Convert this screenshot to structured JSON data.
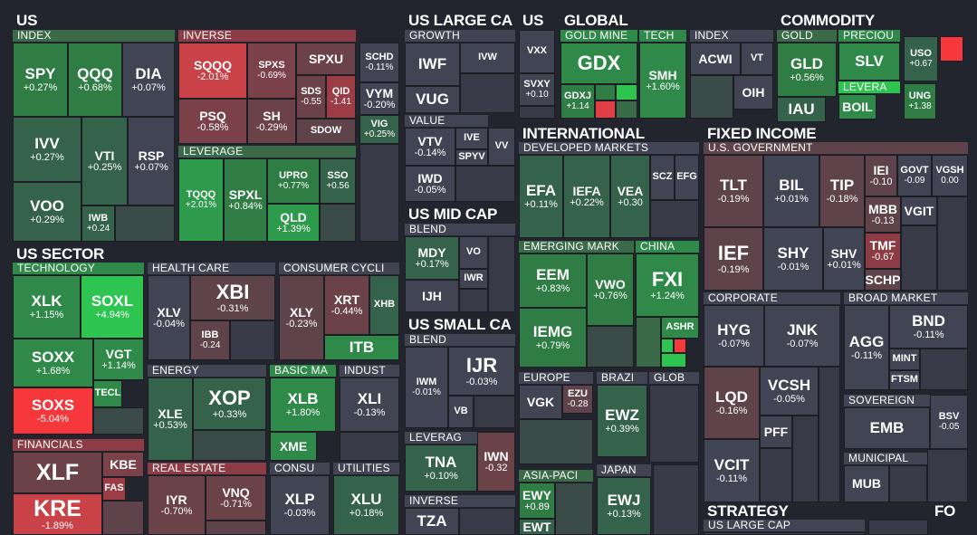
{
  "colors": {
    "bg": "#22252d",
    "neutral": "#414553",
    "neutral_dark": "#383b47",
    "green": "#2f8a4a",
    "green_bright": "#2dc550",
    "red": "#8b3d44",
    "red_bright": "#f6383c",
    "group_green": "#3a6a48",
    "group_red": "#8b3c44",
    "group_neutral": "#414553"
  },
  "sections": {
    "us": "US",
    "us_large_cap": "US LARGE CA",
    "us_small": "US",
    "global": "GLOBAL",
    "commodity": "COMMODITY",
    "us_sector": "US SECTOR",
    "us_mid_cap": "US MID CAP",
    "us_small_cap": "US SMALL CA",
    "international": "INTERNATIONAL",
    "fixed_income": "FIXED INCOME",
    "strategy": "STRATEGY",
    "fo": "FO"
  },
  "groups": {
    "index": "INDEX",
    "inverse": "INVERSE",
    "leverage": "LEVERAGE",
    "growth": "GROWTH",
    "value": "VALUE",
    "blend_mid": "BLEND",
    "blend_small": "BLEND",
    "leverag_small": "LEVERAG",
    "inverse_small": "INVERSE",
    "gold_mine": "GOLD MINE",
    "tech": "TECH",
    "index_global": "INDEX",
    "gold": "GOLD",
    "precious": "PRECIOU",
    "levera": "LEVERA",
    "technology": "TECHNOLOGY",
    "health_care": "HEALTH CARE",
    "consumer_cycl": "CONSUMER CYCLI",
    "energy": "ENERGY",
    "basic_ma": "BASIC MA",
    "indust": "INDUST",
    "financials": "FINANCIALS",
    "real_estate": "REAL ESTATE",
    "consu": "CONSU",
    "utilities": "UTILITIES",
    "developed": "DEVELOPED MARKETS",
    "emerging": "EMERGING MARK",
    "china": "CHINA",
    "europe": "EUROPE",
    "brazi": "BRAZI",
    "glob": "GLOB",
    "asia_paci": "ASIA-PACI",
    "japan": "JAPAN",
    "us_government": "U.S. GOVERNMENT",
    "corporate": "CORPORATE",
    "broad_market": "BROAD MARKET",
    "sovereign": "SOVEREIGN",
    "municipal": "MUNICIPAL",
    "us_large_cap_strat": "US LARGE CAP"
  },
  "tiles": {
    "spy": {
      "t": "SPY",
      "c": "+0.27%"
    },
    "qqq": {
      "t": "QQQ",
      "c": "+0.68%"
    },
    "dia": {
      "t": "DIA",
      "c": "+0.07%"
    },
    "ivv": {
      "t": "IVV",
      "c": "+0.27%"
    },
    "vti": {
      "t": "VTI",
      "c": "+0.25%"
    },
    "rsp": {
      "t": "RSP",
      "c": "+0.07%"
    },
    "voo": {
      "t": "VOO",
      "c": "+0.29%"
    },
    "iwb": {
      "t": "IWB",
      "c": "+0.24"
    },
    "sqqq": {
      "t": "SQQQ",
      "c": "-2.01%"
    },
    "spxs": {
      "t": "SPXS",
      "c": "-0.69%"
    },
    "spxu": {
      "t": "SPXU",
      "c": ""
    },
    "psq": {
      "t": "PSQ",
      "c": "-0.58%"
    },
    "sh": {
      "t": "SH",
      "c": "-0.29%"
    },
    "sds": {
      "t": "SDS",
      "c": "-0.55"
    },
    "qid": {
      "t": "QID",
      "c": "-1.41"
    },
    "sdow": {
      "t": "SDOW",
      "c": ""
    },
    "tqqq": {
      "t": "TQQQ",
      "c": "+2.01%"
    },
    "spxl": {
      "t": "SPXL",
      "c": "+0.84%"
    },
    "upro": {
      "t": "UPRO",
      "c": "+0.77%"
    },
    "sso": {
      "t": "SSO",
      "c": "+0.56"
    },
    "qld": {
      "t": "QLD",
      "c": "+1.39%"
    },
    "schd": {
      "t": "SCHD",
      "c": "-0.11%"
    },
    "vym": {
      "t": "VYM",
      "c": "-0.20%"
    },
    "vig": {
      "t": "VIG",
      "c": "+0.25%"
    },
    "iwf": {
      "t": "IWF",
      "c": ""
    },
    "ivw": {
      "t": "IVW",
      "c": ""
    },
    "vug": {
      "t": "VUG",
      "c": ""
    },
    "vtv": {
      "t": "VTV",
      "c": "-0.14%"
    },
    "ive": {
      "t": "IVE",
      "c": ""
    },
    "spyv": {
      "t": "SPYV",
      "c": ""
    },
    "vv": {
      "t": "VV",
      "c": ""
    },
    "iwd": {
      "t": "IWD",
      "c": "-0.05%"
    },
    "mdy": {
      "t": "MDY",
      "c": "+0.17%"
    },
    "vo": {
      "t": "VO",
      "c": ""
    },
    "iwr": {
      "t": "IWR",
      "c": ""
    },
    "ijh": {
      "t": "IJH",
      "c": ""
    },
    "ijr": {
      "t": "IJR",
      "c": "-0.03%"
    },
    "iwm": {
      "t": "IWM",
      "c": "-0.01%"
    },
    "vb": {
      "t": "VB",
      "c": ""
    },
    "tna": {
      "t": "TNA",
      "c": "+0.10%"
    },
    "iwn": {
      "t": "IWN",
      "c": "-0.32"
    },
    "tza": {
      "t": "TZA",
      "c": ""
    },
    "vxx": {
      "t": "VXX",
      "c": ""
    },
    "svxy": {
      "t": "SVXY",
      "c": "+0.10"
    },
    "gdx": {
      "t": "GDX",
      "c": ""
    },
    "gdxj": {
      "t": "GDXJ",
      "c": "+1.14"
    },
    "smh": {
      "t": "SMH",
      "c": "+1.60%"
    },
    "acwi": {
      "t": "ACWI",
      "c": ""
    },
    "vt": {
      "t": "VT",
      "c": ""
    },
    "oih": {
      "t": "OIH",
      "c": ""
    },
    "gld": {
      "t": "GLD",
      "c": "+0.56%"
    },
    "iau": {
      "t": "IAU",
      "c": ""
    },
    "slv": {
      "t": "SLV",
      "c": ""
    },
    "boil": {
      "t": "BOIL",
      "c": ""
    },
    "uso": {
      "t": "USO",
      "c": "+0.67"
    },
    "ung": {
      "t": "UNG",
      "c": "+1.38"
    },
    "xlk": {
      "t": "XLK",
      "c": "+1.15%"
    },
    "soxl": {
      "t": "SOXL",
      "c": "+4.94%"
    },
    "soxx": {
      "t": "SOXX",
      "c": "+1.68%"
    },
    "vgt": {
      "t": "VGT",
      "c": "+1.14%"
    },
    "tecl": {
      "t": "TECL",
      "c": ""
    },
    "soxs": {
      "t": "SOXS",
      "c": "-5.04%"
    },
    "xlv": {
      "t": "XLV",
      "c": "-0.04%"
    },
    "xbi": {
      "t": "XBI",
      "c": "-0.31%"
    },
    "ibb": {
      "t": "IBB",
      "c": "-0.24"
    },
    "xly": {
      "t": "XLY",
      "c": "-0.23%"
    },
    "xrt": {
      "t": "XRT",
      "c": "-0.44%"
    },
    "xhb": {
      "t": "XHB",
      "c": ""
    },
    "itb": {
      "t": "ITB",
      "c": ""
    },
    "xle": {
      "t": "XLE",
      "c": "+0.53%"
    },
    "xop": {
      "t": "XOP",
      "c": "+0.33%"
    },
    "xlb": {
      "t": "XLB",
      "c": "+1.80%"
    },
    "xme": {
      "t": "XME",
      "c": ""
    },
    "xli": {
      "t": "XLI",
      "c": "-0.13%"
    },
    "xlf": {
      "t": "XLF",
      "c": ""
    },
    "kbe": {
      "t": "KBE",
      "c": ""
    },
    "fas": {
      "t": "FAS",
      "c": ""
    },
    "kre": {
      "t": "KRE",
      "c": "-1.89%"
    },
    "iyr": {
      "t": "IYR",
      "c": "-0.70%"
    },
    "vnq": {
      "t": "VNQ",
      "c": "-0.71%"
    },
    "xlp": {
      "t": "XLP",
      "c": "-0.03%"
    },
    "xlu": {
      "t": "XLU",
      "c": "+0.18%"
    },
    "efa": {
      "t": "EFA",
      "c": "+0.11%"
    },
    "iefa": {
      "t": "IEFA",
      "c": "+0.22%"
    },
    "vea": {
      "t": "VEA",
      "c": "+0.30"
    },
    "scz": {
      "t": "SCZ",
      "c": ""
    },
    "efg": {
      "t": "EFG",
      "c": ""
    },
    "eem": {
      "t": "EEM",
      "c": "+0.83%"
    },
    "vwo": {
      "t": "VWO",
      "c": "+0.76%"
    },
    "iemg": {
      "t": "IEMG",
      "c": "+0.79%"
    },
    "fxi": {
      "t": "FXI",
      "c": "+1.24%"
    },
    "ashr": {
      "t": "ASHR",
      "c": ""
    },
    "vgk": {
      "t": "VGK",
      "c": ""
    },
    "ezu": {
      "t": "EZU",
      "c": "-0.28"
    },
    "ewz": {
      "t": "EWZ",
      "c": "+0.39%"
    },
    "ewy": {
      "t": "EWY",
      "c": "+0.89"
    },
    "ewt": {
      "t": "EWT",
      "c": ""
    },
    "ewj": {
      "t": "EWJ",
      "c": "+0.13%"
    },
    "tlt": {
      "t": "TLT",
      "c": "-0.19%"
    },
    "bil": {
      "t": "BIL",
      "c": "+0.01%"
    },
    "tip": {
      "t": "TIP",
      "c": "-0.18%"
    },
    "iei": {
      "t": "IEI",
      "c": "-0.10"
    },
    "govt": {
      "t": "GOVT",
      "c": "-0.09"
    },
    "vgsh": {
      "t": "VGSH",
      "c": "0.00"
    },
    "mbb": {
      "t": "MBB",
      "c": "-0.13"
    },
    "vgit": {
      "t": "VGIT",
      "c": ""
    },
    "ief": {
      "t": "IEF",
      "c": "-0.19%"
    },
    "shy": {
      "t": "SHY",
      "c": "-0.01%"
    },
    "shv": {
      "t": "SHV",
      "c": "+0.01%"
    },
    "tmf": {
      "t": "TMF",
      "c": "-0.67"
    },
    "schp": {
      "t": "SCHP",
      "c": ""
    },
    "hyg": {
      "t": "HYG",
      "c": "-0.07%"
    },
    "jnk": {
      "t": "JNK",
      "c": "-0.07%"
    },
    "lqd": {
      "t": "LQD",
      "c": "-0.16%"
    },
    "vcsh": {
      "t": "VCSH",
      "c": "-0.05%"
    },
    "pff": {
      "t": "PFF",
      "c": ""
    },
    "vcit": {
      "t": "VCIT",
      "c": "-0.11%"
    },
    "bnd": {
      "t": "BND",
      "c": "-0.11%"
    },
    "agg": {
      "t": "AGG",
      "c": "-0.11%"
    },
    "mint": {
      "t": "MINT",
      "c": ""
    },
    "ftsm": {
      "t": "FTSM",
      "c": ""
    },
    "emb": {
      "t": "EMB",
      "c": ""
    },
    "bsv": {
      "t": "BSV",
      "c": "-0.05"
    },
    "mub": {
      "t": "MUB",
      "c": ""
    }
  }
}
